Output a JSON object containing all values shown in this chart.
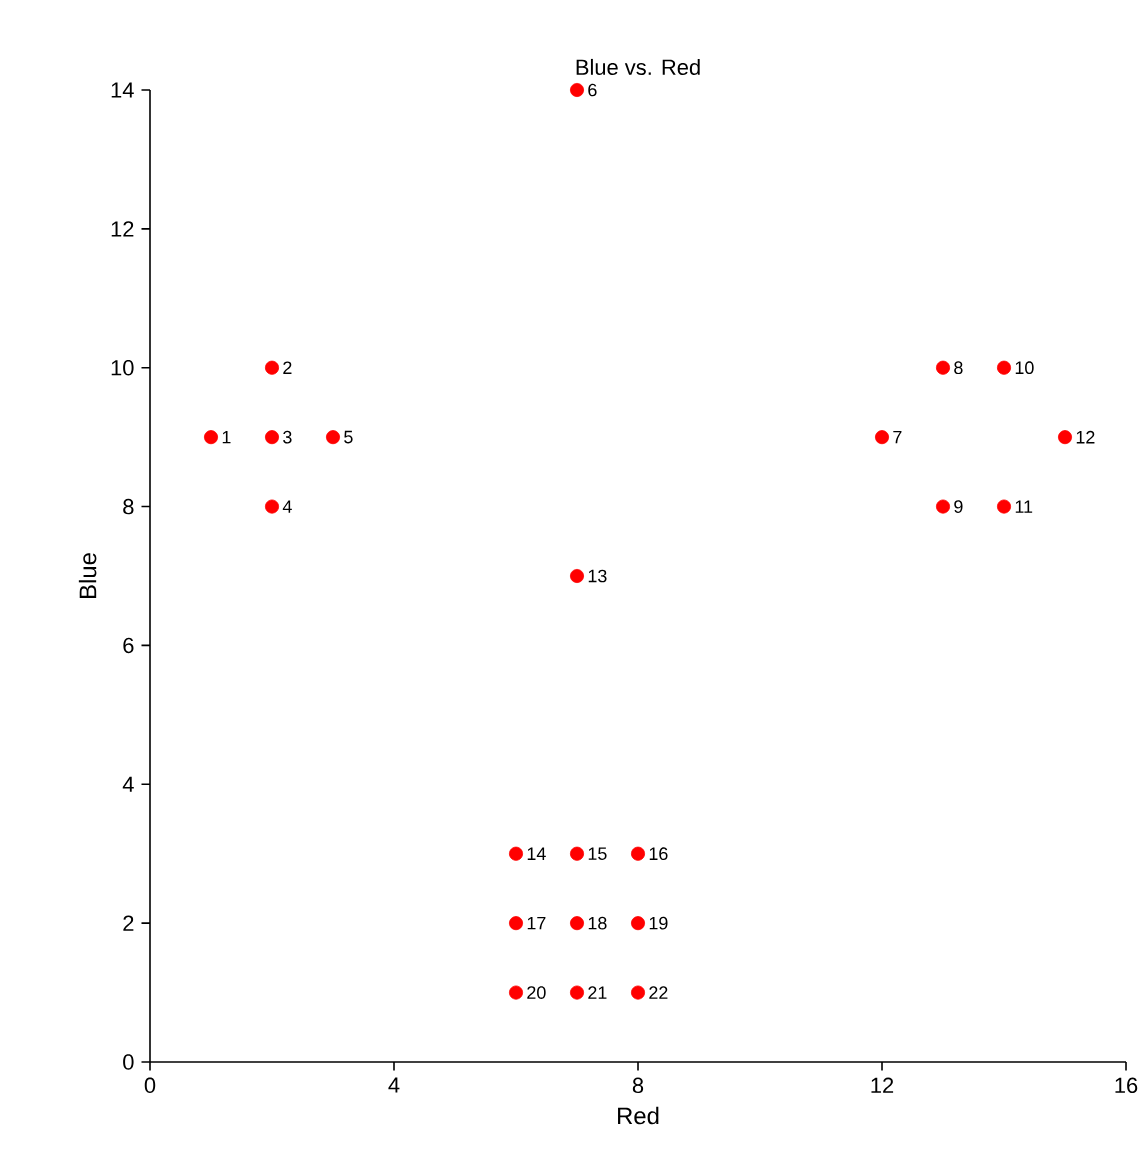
{
  "chart_data": {
    "type": "scatter",
    "title": "Blue vs. Red",
    "xlabel": "Red",
    "ylabel": "Blue",
    "x": [
      1,
      2,
      2,
      2,
      3,
      7,
      12,
      13,
      13,
      14,
      14,
      15,
      7,
      6,
      7,
      8,
      6,
      7,
      8,
      6,
      7,
      8
    ],
    "values": [
      9,
      10,
      9,
      8,
      9,
      14,
      9,
      10,
      8,
      10,
      8,
      9,
      7,
      3,
      3,
      3,
      2,
      2,
      2,
      1,
      1,
      1
    ],
    "color": "#ff0000",
    "marker": "circle",
    "xlim": [
      0,
      16
    ],
    "xticks": [
      0,
      4,
      8,
      12,
      16
    ],
    "ylim": [
      0,
      14
    ],
    "yticks": [
      0,
      2,
      4,
      6,
      8,
      10,
      12,
      14
    ],
    "grid": false,
    "annotations": [
      {
        "text": "1",
        "x": 1,
        "y": 9
      },
      {
        "text": "2",
        "x": 2,
        "y": 10
      },
      {
        "text": "3",
        "x": 2,
        "y": 9
      },
      {
        "text": "4",
        "x": 2,
        "y": 8
      },
      {
        "text": "5",
        "x": 3,
        "y": 9
      },
      {
        "text": "6",
        "x": 7,
        "y": 14
      },
      {
        "text": "7",
        "x": 12,
        "y": 9
      },
      {
        "text": "8",
        "x": 13,
        "y": 10
      },
      {
        "text": "9",
        "x": 13,
        "y": 8
      },
      {
        "text": "10",
        "x": 14,
        "y": 10
      },
      {
        "text": "11",
        "x": 14,
        "y": 8
      },
      {
        "text": "12",
        "x": 15,
        "y": 9
      },
      {
        "text": "13",
        "x": 7,
        "y": 7
      },
      {
        "text": "14",
        "x": 6,
        "y": 3
      },
      {
        "text": "15",
        "x": 7,
        "y": 3
      },
      {
        "text": "16",
        "x": 8,
        "y": 3
      },
      {
        "text": "17",
        "x": 6,
        "y": 2
      },
      {
        "text": "18",
        "x": 7,
        "y": 2
      },
      {
        "text": "19",
        "x": 8,
        "y": 2
      },
      {
        "text": "20",
        "x": 6,
        "y": 1
      },
      {
        "text": "21",
        "x": 7,
        "y": 1
      },
      {
        "text": "22",
        "x": 8,
        "y": 1
      }
    ]
  }
}
